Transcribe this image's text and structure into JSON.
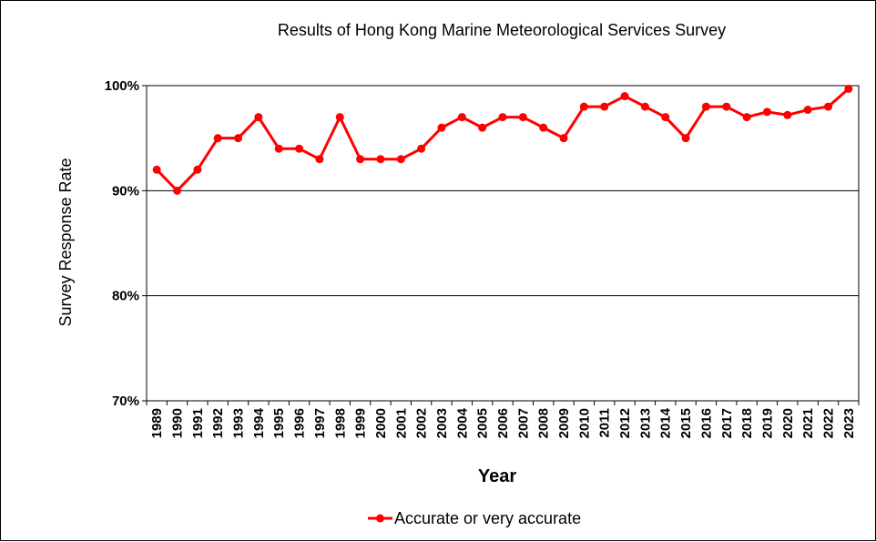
{
  "chart_data": {
    "type": "line",
    "title": "Results of Hong Kong Marine Meteorological Services Survey",
    "xlabel": "Year",
    "ylabel": "Survey Response Rate",
    "ylim": [
      70,
      100
    ],
    "yticks": [
      70,
      80,
      90,
      100
    ],
    "ytick_labels": [
      "70%",
      "80%",
      "90%",
      "100%"
    ],
    "grid": "horizontal",
    "legend_position": "bottom",
    "categories": [
      "1989",
      "1990",
      "1991",
      "1992",
      "1993",
      "1994",
      "1995",
      "1996",
      "1997",
      "1998",
      "1999",
      "2000",
      "2001",
      "2002",
      "2003",
      "2004",
      "2005",
      "2006",
      "2007",
      "2008",
      "2009",
      "2010",
      "2011",
      "2012",
      "2013",
      "2014",
      "2015",
      "2016",
      "2017",
      "2018",
      "2019",
      "2020",
      "2021",
      "2022",
      "2023"
    ],
    "series": [
      {
        "name": "Accurate or very accurate",
        "color": "#ff0000",
        "values": [
          92,
          90,
          92,
          95,
          95,
          97,
          94,
          94,
          93,
          97,
          93,
          93,
          93,
          94,
          96,
          97,
          96,
          97,
          97,
          96,
          95,
          98,
          98,
          99,
          98,
          97,
          95,
          98,
          98,
          97,
          97.5,
          97.2,
          97.7,
          98,
          99.7
        ]
      }
    ]
  }
}
